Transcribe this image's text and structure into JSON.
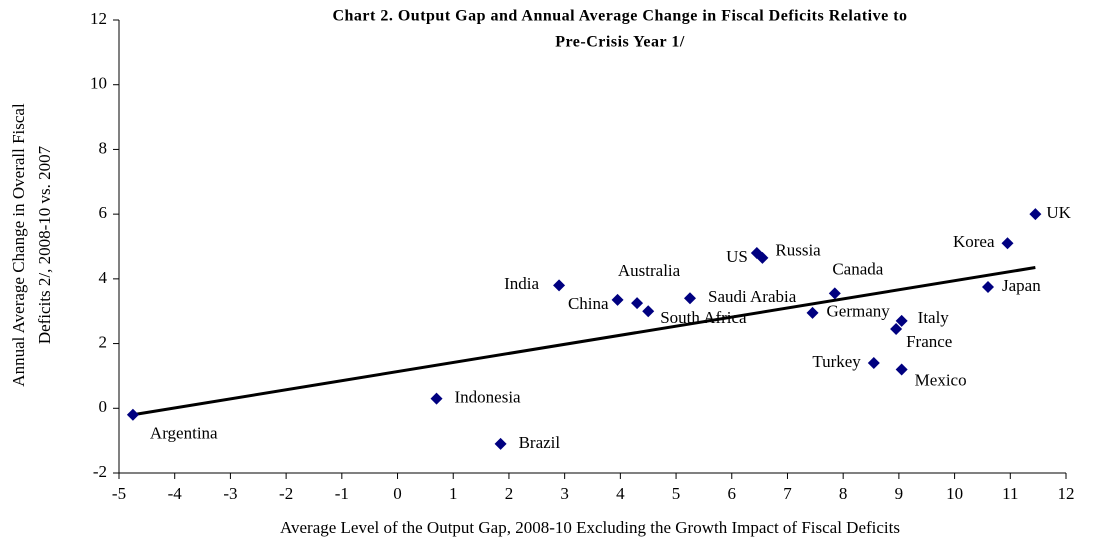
{
  "chart_data": {
    "type": "scatter",
    "title": "Chart 2. Output Gap and Annual Average Change in Fiscal Deficits Relative to",
    "subtitle": "Pre-Crisis Year 1/",
    "xlabel": "Average Level of the Output Gap, 2008-10 Excluding the Growth Impact of Fiscal Deficits",
    "ylabel": [
      "Annual Average Change in Overall  Fiscal",
      "Deficits 2/, 2008-10 vs. 2007"
    ],
    "color": "#000080",
    "labels": [
      "Argentina",
      "Indonesia",
      "Brazil",
      "India",
      "China",
      "Australia",
      "South Africa",
      "Saudi Arabia",
      "US",
      "Russia",
      "Canada",
      "Germany",
      "Italy",
      "France",
      "Turkey",
      "Mexico",
      "Korea",
      "Japan",
      "UK"
    ],
    "x": [
      -4.75,
      0.7,
      1.85,
      2.9,
      3.95,
      4.3,
      4.5,
      5.25,
      6.45,
      6.55,
      7.85,
      7.45,
      9.05,
      8.95,
      8.55,
      9.05,
      10.95,
      10.6,
      11.45
    ],
    "y": [
      -0.2,
      0.3,
      -1.1,
      3.8,
      3.35,
      3.25,
      3.0,
      3.4,
      4.8,
      4.65,
      3.55,
      2.95,
      2.7,
      2.45,
      1.4,
      1.2,
      5.1,
      3.75,
      6.0
    ],
    "trend": {
      "x": [
        -4.75,
        11.45
      ],
      "y": [
        -0.2,
        4.35
      ],
      "color": "#000000"
    },
    "xlim": [
      -5,
      12
    ],
    "ylim": [
      -2,
      12
    ],
    "xticks": [
      -5,
      -4,
      -3,
      -2,
      -1,
      0,
      1,
      2,
      3,
      4,
      5,
      6,
      7,
      8,
      9,
      10,
      11,
      12
    ],
    "yticks": [
      -2,
      0,
      2,
      4,
      6,
      8,
      10,
      12
    ]
  }
}
